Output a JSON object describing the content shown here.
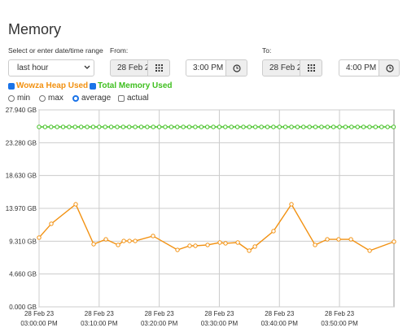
{
  "header": {
    "title": "Memory"
  },
  "range": {
    "label": "Select or enter date/time range",
    "preset": "last hour",
    "from": {
      "label": "From:",
      "date": "28 Feb 2",
      "time": "3:00 PM"
    },
    "to": {
      "label": "To:",
      "date": "28 Feb 2",
      "time": "4:00 PM"
    }
  },
  "modes": [
    {
      "label": "min",
      "control": "radio",
      "selected": false
    },
    {
      "label": "max",
      "control": "radio",
      "selected": false
    },
    {
      "label": "average",
      "control": "radio",
      "selected": true
    },
    {
      "label": "actual",
      "control": "checkbox",
      "selected": false
    }
  ],
  "chart_data": {
    "type": "line",
    "grid": true,
    "xlim": [
      "15:00:00",
      "15:59:04"
    ],
    "xticks": [
      {
        "value": "15:00:00",
        "label": "28 Feb 23 03:00:00 PM"
      },
      {
        "value": "15:10:00",
        "label": "28 Feb 23 03:10:00 PM"
      },
      {
        "value": "15:20:00",
        "label": "28 Feb 23 03:20:00 PM"
      },
      {
        "value": "15:30:00",
        "label": "28 Feb 23 03:30:00 PM"
      },
      {
        "value": "15:40:00",
        "label": "28 Feb 23 03:40:00 PM"
      },
      {
        "value": "15:50:00",
        "label": "28 Feb 23 03:50:00 PM"
      }
    ],
    "ylim": [
      0,
      27.94
    ],
    "yticks": [
      {
        "value": 0,
        "label": "0.000 GB"
      },
      {
        "value": 4.66,
        "label": "4.660 GB"
      },
      {
        "value": 9.31,
        "label": "9.310 GB"
      },
      {
        "value": 13.97,
        "label": "13.970 GB"
      },
      {
        "value": 18.63,
        "label": "18.630 GB"
      },
      {
        "value": 23.28,
        "label": "23.280 GB"
      },
      {
        "value": 27.94,
        "label": "27.940 GB"
      }
    ],
    "series": [
      {
        "name": "Wowza Heap Used",
        "color": "#f29111",
        "visible": true,
        "x": [
          "15:00:00",
          "15:02:02",
          "15:06:06",
          "15:09:05",
          "15:11:07",
          "15:13:09",
          "15:14:06",
          "15:15:03",
          "15:16:00",
          "15:18:58",
          "15:23:02",
          "15:25:04",
          "15:26:01",
          "15:28:03",
          "15:30:05",
          "15:31:02",
          "15:33:04",
          "15:34:58",
          "15:35:55",
          "15:39:01",
          "15:42:00",
          "15:45:56",
          "15:47:58",
          "15:49:51",
          "15:51:54",
          "15:55:01",
          "15:59:04"
        ],
        "values": [
          9.82,
          11.78,
          14.55,
          8.89,
          9.58,
          8.78,
          9.35,
          9.35,
          9.35,
          10.05,
          8.08,
          8.66,
          8.66,
          8.78,
          9.12,
          9.01,
          9.12,
          7.97,
          8.55,
          10.74,
          14.55,
          8.78,
          9.58,
          9.58,
          9.58,
          7.97,
          9.24
        ]
      },
      {
        "name": "Total Memory Used",
        "color": "#3fbf1f",
        "visible": true,
        "x": [
          "15:00:00",
          "15:01:00",
          "15:02:00",
          "15:03:00",
          "15:04:00",
          "15:05:00",
          "15:06:00",
          "15:07:00",
          "15:08:00",
          "15:09:00",
          "15:10:00",
          "15:11:00",
          "15:12:00",
          "15:13:00",
          "15:14:00",
          "15:15:00",
          "15:16:00",
          "15:17:00",
          "15:18:00",
          "15:19:00",
          "15:20:00",
          "15:21:00",
          "15:22:00",
          "15:23:00",
          "15:24:00",
          "15:25:00",
          "15:26:00",
          "15:27:00",
          "15:28:00",
          "15:29:00",
          "15:30:00",
          "15:31:00",
          "15:32:00",
          "15:33:00",
          "15:34:00",
          "15:35:00",
          "15:36:00",
          "15:37:00",
          "15:38:00",
          "15:39:00",
          "15:40:00",
          "15:41:00",
          "15:42:00",
          "15:43:00",
          "15:44:00",
          "15:45:00",
          "15:46:00",
          "15:47:00",
          "15:48:00",
          "15:49:00",
          "15:50:00",
          "15:51:00",
          "15:52:00",
          "15:53:00",
          "15:54:00",
          "15:55:00",
          "15:56:00",
          "15:57:00",
          "15:58:00",
          "15:59:00"
        ],
        "values": [
          25.52,
          25.52,
          25.52,
          25.52,
          25.52,
          25.52,
          25.52,
          25.52,
          25.52,
          25.52,
          25.52,
          25.52,
          25.52,
          25.52,
          25.52,
          25.52,
          25.52,
          25.52,
          25.52,
          25.52,
          25.52,
          25.52,
          25.52,
          25.52,
          25.52,
          25.52,
          25.52,
          25.52,
          25.52,
          25.52,
          25.52,
          25.52,
          25.52,
          25.52,
          25.52,
          25.52,
          25.52,
          25.52,
          25.52,
          25.52,
          25.52,
          25.52,
          25.52,
          25.52,
          25.52,
          25.52,
          25.52,
          25.52,
          25.52,
          25.52,
          25.52,
          25.52,
          25.52,
          25.52,
          25.52,
          25.52,
          25.52,
          25.52,
          25.52,
          25.52
        ]
      }
    ]
  }
}
